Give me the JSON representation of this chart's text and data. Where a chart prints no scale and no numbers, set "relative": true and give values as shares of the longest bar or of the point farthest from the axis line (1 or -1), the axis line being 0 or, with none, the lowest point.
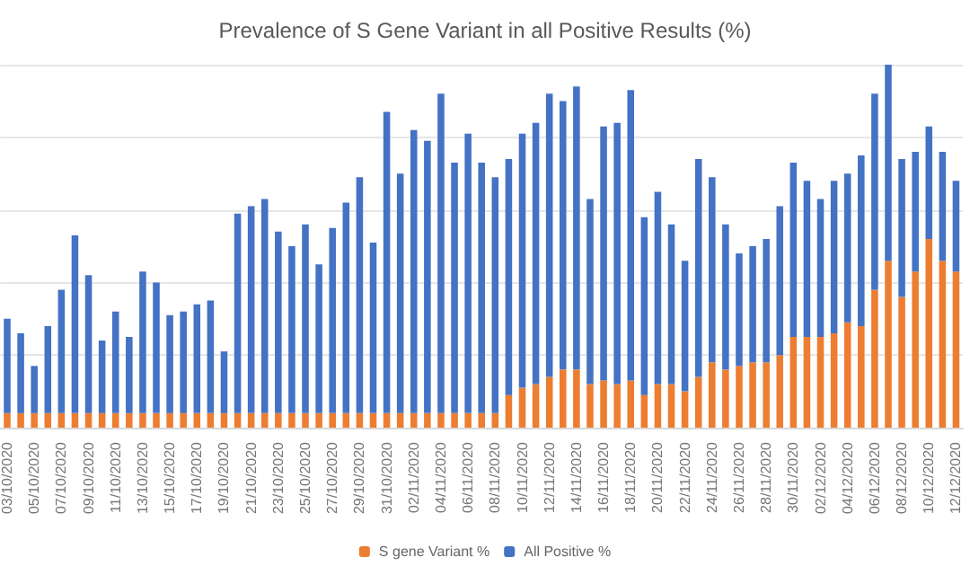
{
  "chart_data": {
    "type": "bar",
    "title": "Prevalence of S Gene Variant in all Positive Results (%)",
    "relative": true,
    "stacked": true,
    "grid": "y",
    "legend": "bottom",
    "categories": [
      "03/10/2020",
      null,
      "05/10/2020",
      null,
      "07/10/2020",
      null,
      "09/10/2020",
      null,
      "11/10/2020",
      null,
      "13/10/2020",
      null,
      "15/10/2020",
      null,
      "17/10/2020",
      null,
      "19/10/2020",
      null,
      "21/10/2020",
      null,
      "23/10/2020",
      null,
      "25/10/2020",
      null,
      "27/10/2020",
      null,
      "29/10/2020",
      null,
      "31/10/2020",
      null,
      "02/11/2020",
      null,
      "04/11/2020",
      null,
      "06/11/2020",
      null,
      "08/11/2020",
      null,
      "10/11/2020",
      null,
      "12/11/2020",
      null,
      "14/11/2020",
      null,
      "16/11/2020",
      null,
      "18/11/2020",
      null,
      "20/11/2020",
      null,
      "22/11/2020",
      null,
      "24/11/2020",
      null,
      "26/11/2020",
      null,
      "28/11/2020",
      null,
      "30/11/2020",
      null,
      "02/12/2020",
      null,
      "04/12/2020",
      null,
      "06/12/2020",
      null,
      "08/12/2020",
      null,
      "10/12/2020",
      null,
      "12/12/2020"
    ],
    "series": [
      {
        "name": "S gene Variant %",
        "color": "#ed7d31",
        "values": [
          0.04,
          0.04,
          0.04,
          0.04,
          0.04,
          0.04,
          0.04,
          0.04,
          0.04,
          0.04,
          0.04,
          0.04,
          0.04,
          0.04,
          0.04,
          0.04,
          0.04,
          0.04,
          0.04,
          0.04,
          0.04,
          0.04,
          0.04,
          0.04,
          0.04,
          0.04,
          0.04,
          0.04,
          0.04,
          0.04,
          0.04,
          0.04,
          0.04,
          0.04,
          0.04,
          0.04,
          0.04,
          0.09,
          0.11,
          0.12,
          0.14,
          0.16,
          0.16,
          0.12,
          0.13,
          0.12,
          0.13,
          0.09,
          0.12,
          0.12,
          0.1,
          0.14,
          0.18,
          0.16,
          0.17,
          0.18,
          0.18,
          0.2,
          0.25,
          0.25,
          0.25,
          0.26,
          0.29,
          0.28,
          0.38,
          0.46,
          0.36,
          0.43,
          0.52,
          0.46,
          0.43
        ]
      },
      {
        "name": "All Positive %",
        "color": "#4472c4",
        "values": [
          0.26,
          0.22,
          0.13,
          0.24,
          0.34,
          0.49,
          0.38,
          0.2,
          0.28,
          0.21,
          0.39,
          0.36,
          0.27,
          0.28,
          0.3,
          0.31,
          0.17,
          0.55,
          0.57,
          0.59,
          0.5,
          0.46,
          0.52,
          0.41,
          0.51,
          0.58,
          0.65,
          0.47,
          0.83,
          0.66,
          0.78,
          0.75,
          0.88,
          0.69,
          0.77,
          0.69,
          0.65,
          0.65,
          0.7,
          0.72,
          0.78,
          0.74,
          0.78,
          0.51,
          0.7,
          0.72,
          0.8,
          0.49,
          0.53,
          0.44,
          0.36,
          0.6,
          0.51,
          0.4,
          0.31,
          0.32,
          0.34,
          0.41,
          0.48,
          0.43,
          0.38,
          0.42,
          0.41,
          0.47,
          0.54,
          0.54,
          0.38,
          0.33,
          0.31,
          0.3,
          0.25
        ]
      }
    ]
  }
}
